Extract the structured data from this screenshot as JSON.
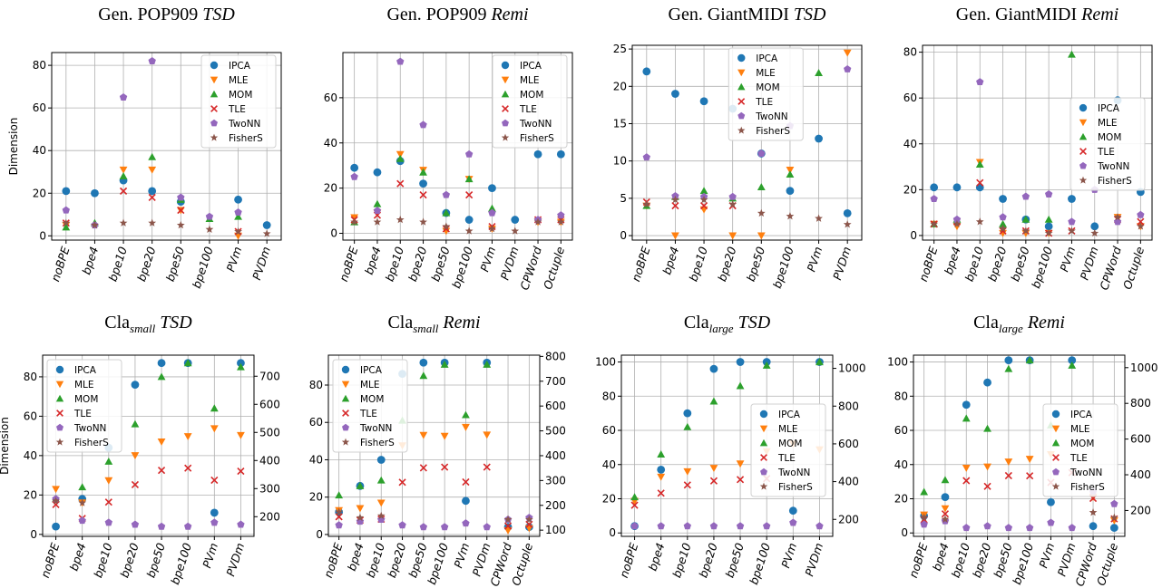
{
  "figure": {
    "series_names": [
      "IPCA",
      "MLE",
      "MOM",
      "TLE",
      "TwoNN",
      "FisherS"
    ],
    "colors": {
      "IPCA": "#1f77b4",
      "MLE": "#ff7f0e",
      "MOM": "#2ca02c",
      "TLE": "#d62728",
      "TwoNN": "#9467bd",
      "FisherS": "#8c564b"
    },
    "markers": {
      "IPCA": "circle",
      "MLE": "triangle-down",
      "MOM": "triangle-up",
      "TLE": "x",
      "TwoNN": "pentagon",
      "FisherS": "star"
    },
    "dimension_label": "Dimension"
  },
  "chart_data": [
    {
      "type": "scatter",
      "title": "Gen. POP909",
      "title_italic": "TSD",
      "categories": [
        "noBPE",
        "bpe4",
        "bpe10",
        "bpe20",
        "bpe50",
        "bpe100",
        "PVm",
        "PVDm"
      ],
      "ylabel": "Dimension",
      "ylim": [
        -2,
        86
      ],
      "yticks": [
        0,
        20,
        40,
        60,
        80
      ],
      "grid": true,
      "legend_position": "top-right",
      "series": [
        {
          "name": "IPCA",
          "values": [
            21,
            20,
            26,
            21,
            16,
            null,
            17,
            5
          ]
        },
        {
          "name": "MLE",
          "values": [
            5,
            null,
            31,
            31,
            12,
            null,
            0,
            null
          ]
        },
        {
          "name": "MOM",
          "values": [
            4,
            6,
            28,
            37,
            17,
            8,
            9,
            null
          ]
        },
        {
          "name": "TLE",
          "values": [
            6,
            null,
            21,
            18,
            12,
            null,
            2,
            null
          ]
        },
        {
          "name": "TwoNN",
          "values": [
            12,
            5,
            65,
            82,
            18,
            9,
            11,
            null
          ]
        },
        {
          "name": "FisherS",
          "values": [
            6,
            5,
            6,
            6,
            5,
            3,
            2,
            1
          ]
        }
      ]
    },
    {
      "type": "scatter",
      "title": "Gen. POP909",
      "title_italic": "Remi",
      "categories": [
        "noBPE",
        "bpe4",
        "bpe10",
        "bpe20",
        "bpe50",
        "bpe100",
        "PVm",
        "PVDm",
        "CPWord",
        "Octuple"
      ],
      "ylabel": "",
      "ylim": [
        -3,
        80
      ],
      "yticks": [
        0,
        20,
        40,
        60
      ],
      "grid": true,
      "legend_position": "top-right",
      "series": [
        {
          "name": "IPCA",
          "values": [
            29,
            27,
            32,
            22,
            9,
            6,
            20,
            6,
            35,
            35
          ]
        },
        {
          "name": "MLE",
          "values": [
            7,
            9,
            35,
            28,
            1,
            24,
            2,
            null,
            5,
            5
          ]
        },
        {
          "name": "MOM",
          "values": [
            5,
            13,
            33,
            27,
            9,
            24,
            11,
            null,
            null,
            null
          ]
        },
        {
          "name": "TLE",
          "values": [
            6,
            8,
            22,
            17,
            2,
            17,
            3,
            null,
            6,
            6
          ]
        },
        {
          "name": "TwoNN",
          "values": [
            25,
            10,
            76,
            48,
            17,
            35,
            9,
            null,
            6,
            8
          ]
        },
        {
          "name": "FisherS",
          "values": [
            5,
            5,
            6,
            5,
            3,
            1,
            2,
            1,
            5,
            5
          ]
        }
      ]
    },
    {
      "type": "scatter",
      "title": "Gen. GiantMIDI",
      "title_italic": "TSD",
      "categories": [
        "noBPE",
        "bpe4",
        "bpe10",
        "bpe20",
        "bpe50",
        "bpe100",
        "PVm",
        "PVDm"
      ],
      "ylabel": "",
      "ylim": [
        -0.6,
        25.5
      ],
      "yticks": [
        0,
        5,
        10,
        15,
        20,
        25
      ],
      "grid": true,
      "legend_position": "top-center",
      "series": [
        {
          "name": "IPCA",
          "values": [
            22,
            19,
            18,
            17,
            11,
            6,
            13,
            3
          ]
        },
        {
          "name": "MLE",
          "values": [
            4,
            0,
            3.5,
            0,
            0,
            8.8,
            null,
            24.5
          ]
        },
        {
          "name": "MOM",
          "values": [
            4,
            5.2,
            6,
            5,
            6.5,
            8.2,
            21.8,
            null
          ]
        },
        {
          "name": "TLE",
          "values": [
            4.5,
            4,
            4,
            4,
            null,
            null,
            null,
            null
          ]
        },
        {
          "name": "TwoNN",
          "values": [
            10.5,
            5.3,
            5.2,
            5.2,
            11,
            14.7,
            null,
            22.3
          ]
        },
        {
          "name": "FisherS",
          "values": [
            4.2,
            4.8,
            4.8,
            4.2,
            3,
            2.6,
            2.3,
            1.5
          ]
        }
      ]
    },
    {
      "type": "scatter",
      "title": "Gen. GiantMIDI",
      "title_italic": "Remi",
      "categories": [
        "noBPE",
        "bpe4",
        "bpe10",
        "bpe20",
        "bpe50",
        "bpe100",
        "PVm",
        "PVDm",
        "CPWord",
        "Octuple"
      ],
      "ylabel": "",
      "ylim": [
        -2,
        83
      ],
      "yticks": [
        0,
        20,
        40,
        60,
        80
      ],
      "grid": true,
      "legend_position": "right",
      "series": [
        {
          "name": "IPCA",
          "values": [
            21,
            21,
            21,
            16,
            7,
            4,
            16,
            4,
            59,
            19
          ]
        },
        {
          "name": "MLE",
          "values": [
            5,
            4,
            32,
            1,
            1,
            1,
            null,
            null,
            8,
            4
          ]
        },
        {
          "name": "MOM",
          "values": [
            5,
            7,
            31,
            5,
            7,
            7,
            79,
            null,
            null,
            null
          ]
        },
        {
          "name": "TLE",
          "values": [
            5,
            6,
            23,
            2,
            2,
            1,
            2,
            null,
            7,
            6
          ]
        },
        {
          "name": "TwoNN",
          "values": [
            16,
            7,
            67,
            8,
            17,
            18,
            6,
            20,
            6,
            9
          ]
        },
        {
          "name": "FisherS",
          "values": [
            5,
            5,
            6,
            3,
            2,
            1,
            2,
            1,
            8,
            4
          ]
        }
      ]
    },
    {
      "type": "scatter",
      "title": "Cla",
      "title_sub": "small",
      "title_italic": "TSD",
      "categories": [
        "noBPE",
        "bpe4",
        "bpe10",
        "bpe20",
        "bpe50",
        "bpe100",
        "PVm",
        "PVDm"
      ],
      "ylabel": "Dimension",
      "ylim": [
        -1,
        91
      ],
      "yticks": [
        0,
        20,
        40,
        60,
        80
      ],
      "y2lim": [
        130,
        775
      ],
      "y2ticks": [
        200,
        300,
        400,
        500,
        600,
        700
      ],
      "secondary_axis_series": [
        "MLE",
        "TLE"
      ],
      "grid": true,
      "legend_position": "top-left",
      "series": [
        {
          "name": "IPCA",
          "values": [
            4,
            18,
            44,
            76,
            87,
            87,
            11,
            87
          ]
        },
        {
          "name": "MLE",
          "values": [
            298,
            250,
            329,
            418,
            467,
            486,
            514,
            490
          ]
        },
        {
          "name": "MOM",
          "values": [
            18,
            24,
            37,
            56,
            80,
            87,
            64,
            85
          ]
        },
        {
          "name": "TLE",
          "values": [
            243,
            194,
            252,
            314,
            365,
            373,
            330,
            362
          ]
        },
        {
          "name": "TwoNN",
          "values": [
            18,
            7,
            6,
            5,
            4,
            4,
            6,
            5
          ]
        },
        {
          "name": "FisherS",
          "values": [
            17,
            16,
            null,
            null,
            null,
            null,
            null,
            null
          ]
        }
      ]
    },
    {
      "type": "scatter",
      "title": "Cla",
      "title_sub": "small",
      "title_italic": "Remi",
      "categories": [
        "noBPE",
        "bpe4",
        "bpe10",
        "bpe20",
        "bpe50",
        "bpe100",
        "PVm",
        "PVDm",
        "CPWord",
        "Octuple"
      ],
      "ylabel": "",
      "ylim": [
        -1,
        96
      ],
      "yticks": [
        0,
        20,
        40,
        60,
        80
      ],
      "y2lim": [
        75,
        805
      ],
      "y2ticks": [
        100,
        200,
        300,
        400,
        500,
        600,
        700,
        800
      ],
      "secondary_axis_series": [
        "MLE",
        "TLE"
      ],
      "grid": true,
      "legend_position": "top-left",
      "series": [
        {
          "name": "IPCA",
          "values": [
            12,
            26,
            40,
            86,
            92,
            92,
            18,
            92,
            4,
            4
          ]
        },
        {
          "name": "MLE",
          "values": [
            180,
            188,
            210,
            441,
            483,
            479,
            515,
            484,
            99,
            108
          ]
        },
        {
          "name": "MOM",
          "values": [
            21,
            26,
            29,
            61,
            85,
            91,
            64,
            91,
            null,
            null
          ]
        },
        {
          "name": "TLE",
          "values": [
            154,
            140,
            144,
            293,
            351,
            354,
            294,
            354,
            117,
            123
          ]
        },
        {
          "name": "TwoNN",
          "values": [
            5,
            7,
            8,
            5,
            4,
            4,
            6,
            4,
            8,
            9
          ]
        },
        {
          "name": "FisherS",
          "values": [
            12,
            9,
            10,
            null,
            null,
            null,
            null,
            null,
            8,
            8
          ]
        }
      ]
    },
    {
      "type": "scatter",
      "title": "Cla",
      "title_sub": "large",
      "title_italic": "TSD",
      "categories": [
        "noBPE",
        "bpe4",
        "bpe10",
        "bpe20",
        "bpe50",
        "bpe100",
        "PVm",
        "PVDm"
      ],
      "ylabel": "",
      "ylim": [
        -2,
        104
      ],
      "yticks": [
        0,
        20,
        40,
        60,
        80,
        100
      ],
      "y2lim": [
        110,
        1070
      ],
      "y2ticks": [
        200,
        400,
        600,
        800,
        1000
      ],
      "secondary_axis_series": [
        "MLE",
        "TLE"
      ],
      "grid": true,
      "legend_position": "right",
      "series": [
        {
          "name": "IPCA",
          "values": [
            4,
            37,
            70,
            96,
            100,
            100,
            13,
            100
          ]
        },
        {
          "name": "MLE",
          "values": [
            297,
            425,
            454,
            472,
            495,
            560,
            600,
            570
          ]
        },
        {
          "name": "MOM",
          "values": [
            21,
            46,
            62,
            77,
            86,
            98,
            null,
            100
          ]
        },
        {
          "name": "TLE",
          "values": [
            275,
            339,
            382,
            404,
            411,
            416,
            null,
            null
          ]
        },
        {
          "name": "TwoNN",
          "values": [
            4,
            4,
            4,
            4,
            4,
            4,
            6,
            4
          ]
        },
        {
          "name": "FisherS",
          "values": [
            null,
            null,
            null,
            null,
            null,
            null,
            null,
            null
          ]
        }
      ]
    },
    {
      "type": "scatter",
      "title": "Cla",
      "title_sub": "large",
      "title_italic": "Remi",
      "categories": [
        "noBPE",
        "bpe4",
        "bpe10",
        "bpe20",
        "bpe50",
        "bpe100",
        "PVm",
        "PVDm",
        "CPWord",
        "Octuple"
      ],
      "ylabel": "",
      "ylim": [
        -2,
        104
      ],
      "yticks": [
        0,
        20,
        40,
        60,
        80,
        100
      ],
      "y2lim": [
        55,
        1070
      ],
      "y2ticks": [
        200,
        400,
        600,
        800,
        1000
      ],
      "secondary_axis_series": [
        "MLE",
        "TLE"
      ],
      "grid": true,
      "legend_position": "right",
      "series": [
        {
          "name": "IPCA",
          "values": [
            10,
            21,
            75,
            88,
            101,
            101,
            18,
            101,
            4,
            3
          ]
        },
        {
          "name": "MLE",
          "values": [
            176,
            211,
            438,
            445,
            473,
            488,
            514,
            null,
            275,
            144
          ]
        },
        {
          "name": "MOM",
          "values": [
            24,
            31,
            67,
            61,
            96,
            101,
            63,
            98,
            null,
            null
          ]
        },
        {
          "name": "TLE",
          "values": [
            149,
            181,
            367,
            335,
            395,
            394,
            357,
            412,
            268,
            153
          ]
        },
        {
          "name": "TwoNN",
          "values": [
            5,
            7,
            3,
            4,
            3,
            3,
            6,
            3,
            24,
            17
          ]
        },
        {
          "name": "FisherS",
          "values": [
            9,
            8,
            null,
            null,
            null,
            null,
            null,
            null,
            12,
            9
          ]
        }
      ]
    }
  ]
}
